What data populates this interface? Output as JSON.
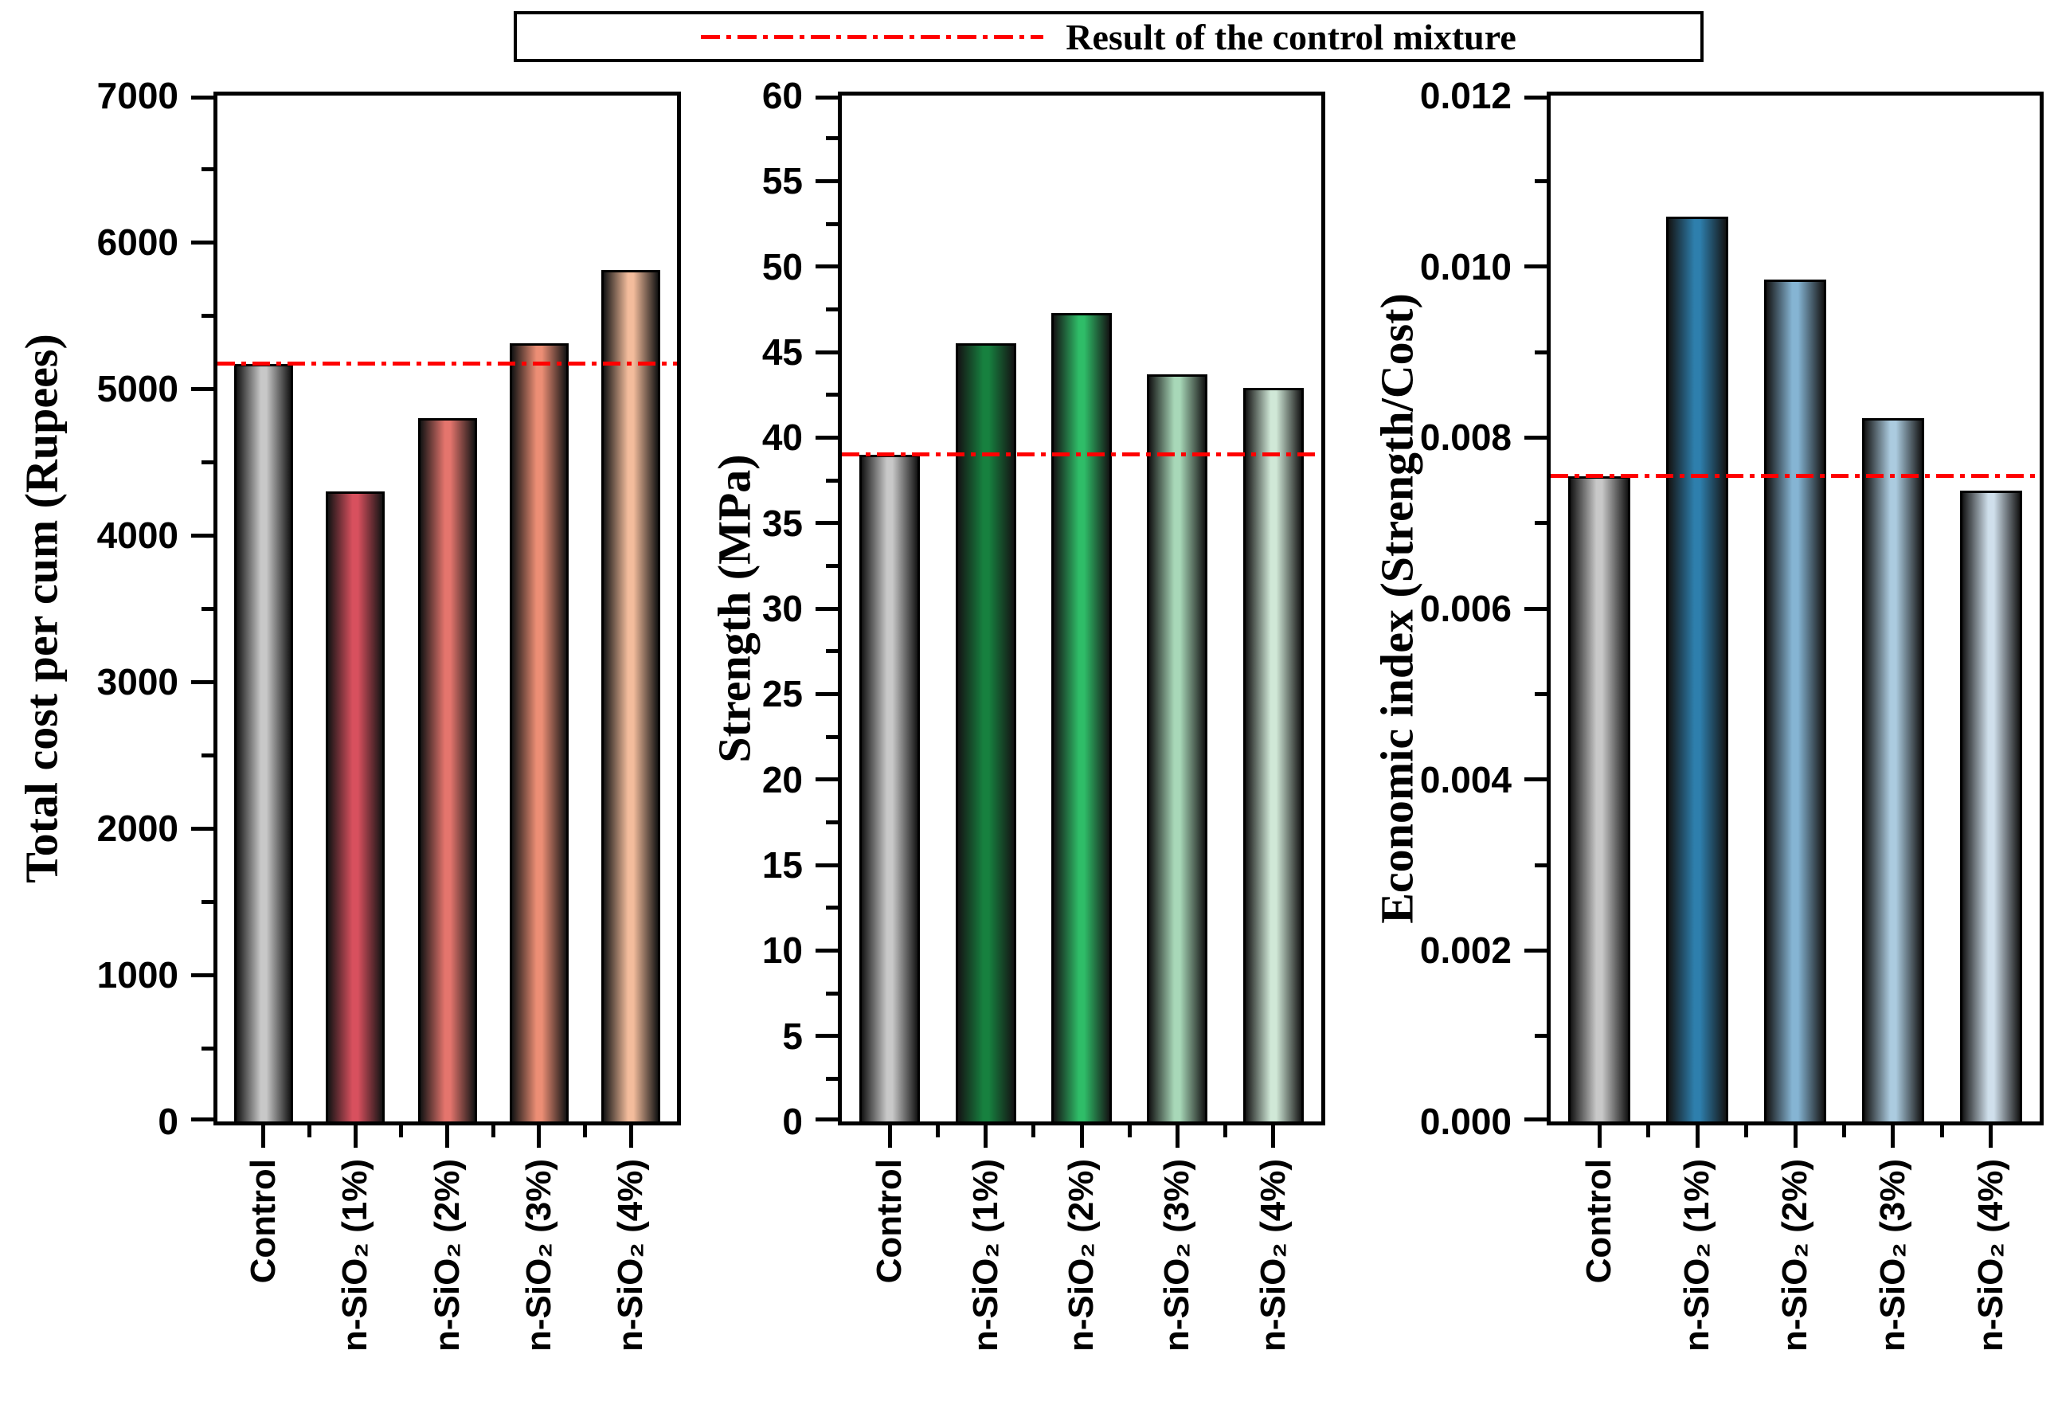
{
  "legend": {
    "label": "Result of the control mixture",
    "line_color": "#ff0000"
  },
  "chart_data": [
    {
      "type": "bar",
      "ylabel": "Total cost per cum (Rupees)",
      "categories": [
        "Control",
        "n-SiO₂ (1%)",
        "n-SiO₂ (2%)",
        "n-SiO₂ (3%)",
        "n-SiO₂ (4%)"
      ],
      "values": [
        5170,
        4300,
        4800,
        5310,
        5810
      ],
      "ylim": [
        0,
        7000
      ],
      "ytick_major": 1000,
      "ytick_minor": 500,
      "ytick_labels": [
        "0",
        "1000",
        "2000",
        "3000",
        "4000",
        "5000",
        "6000",
        "7000"
      ],
      "ref_line": {
        "value": 5170,
        "color": "#ff0000",
        "meaning": "Result of the control mixture"
      },
      "bar_colors": [
        "#c8c8c8",
        "#d8505e",
        "#e4756d",
        "#ec8e75",
        "#f3bc9c"
      ],
      "grid": false,
      "legend_position": "top-outside"
    },
    {
      "type": "bar",
      "ylabel": "Strength (MPa)",
      "categories": [
        "Control",
        "n-SiO₂ (1%)",
        "n-SiO₂ (2%)",
        "n-SiO₂ (3%)",
        "n-SiO₂ (4%)"
      ],
      "values": [
        39.0,
        45.5,
        47.3,
        43.7,
        42.9
      ],
      "ylim": [
        0,
        60
      ],
      "ytick_major": 5,
      "ytick_minor": 2.5,
      "ytick_labels": [
        "0",
        "5",
        "10",
        "15",
        "20",
        "25",
        "30",
        "35",
        "40",
        "45",
        "50",
        "55",
        "60"
      ],
      "ref_line": {
        "value": 39.0,
        "color": "#ff0000",
        "meaning": "Result of the control mixture"
      },
      "bar_colors": [
        "#c8c8c8",
        "#17813f",
        "#2fbd68",
        "#a8d8b8",
        "#d0e8d7"
      ],
      "grid": false,
      "legend_position": "top-outside"
    },
    {
      "type": "bar",
      "ylabel": "Economic index (Strength/Cost)",
      "categories": [
        "Control",
        "n-SiO₂ (1%)",
        "n-SiO₂ (2%)",
        "n-SiO₂ (3%)",
        "n-SiO₂ (4%)"
      ],
      "values": [
        0.00755,
        0.01058,
        0.00985,
        0.00823,
        0.00738
      ],
      "ylim": [
        0,
        0.012
      ],
      "ytick_major": 0.002,
      "ytick_minor": 0.001,
      "ytick_labels": [
        "0.000",
        "0.002",
        "0.004",
        "0.006",
        "0.008",
        "0.010",
        "0.012"
      ],
      "ref_line": {
        "value": 0.00755,
        "color": "#ff0000",
        "meaning": "Result of the control mixture"
      },
      "bar_colors": [
        "#c8c8c8",
        "#2e7fad",
        "#85b4d3",
        "#abcbdf",
        "#cfdfeb"
      ],
      "grid": false,
      "legend_position": "top-outside"
    }
  ]
}
